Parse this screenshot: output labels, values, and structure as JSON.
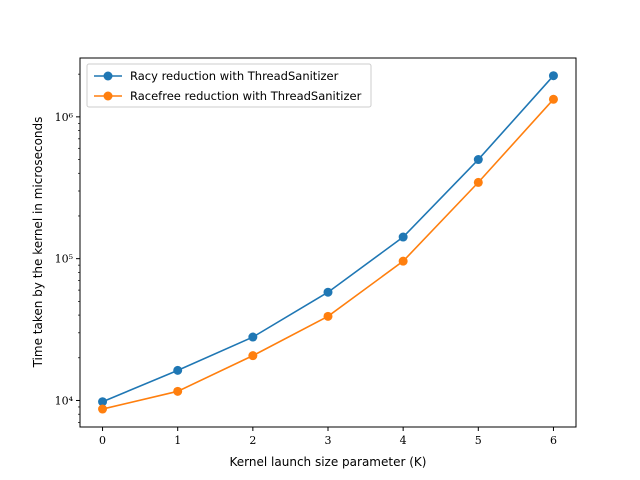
{
  "chart_data": {
    "type": "line",
    "title": "",
    "xlabel": "Kernel launch size parameter (K)",
    "ylabel": "Time taken by the kernel in microseconds",
    "yscale": "log",
    "xlim": [
      -0.3,
      6.3
    ],
    "ylim": [
      6500,
      2600000
    ],
    "x": [
      0,
      1,
      2,
      3,
      4,
      5,
      6
    ],
    "x_tick_labels": [
      "0",
      "1",
      "2",
      "3",
      "4",
      "5",
      "6"
    ],
    "y_tick_values": [
      10000,
      100000,
      1000000
    ],
    "y_tick_labels": [
      "10⁴",
      "10⁵",
      "10⁶"
    ],
    "grid": false,
    "legend_position": "upper-left",
    "series": [
      {
        "name": "Racy reduction with ThreadSanitizer",
        "color": "#1f77b4",
        "marker": "circle",
        "values": [
          9800,
          16300,
          28000,
          58000,
          142000,
          500000,
          1950000
        ]
      },
      {
        "name": "Racefree reduction with ThreadSanitizer",
        "color": "#ff7f0e",
        "marker": "circle",
        "values": [
          8700,
          11600,
          20700,
          39200,
          96000,
          345000,
          1330000
        ]
      }
    ]
  }
}
